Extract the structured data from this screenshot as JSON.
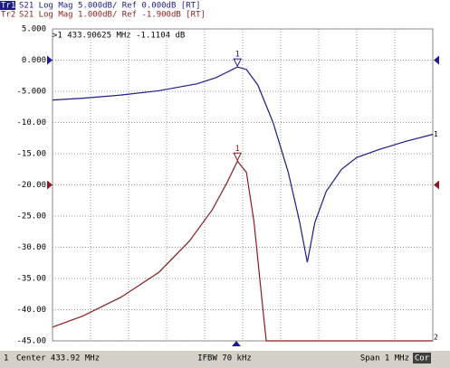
{
  "chart_data": {
    "type": "line",
    "xlim": [
      433.42,
      434.42
    ],
    "xticks": [
      433.42,
      433.52,
      433.62,
      433.72,
      433.82,
      433.92,
      434.02,
      434.12,
      434.22,
      434.32,
      434.42
    ],
    "ylim": [
      -45,
      5
    ],
    "yticks": [
      {
        "value": 5,
        "label": "5.000"
      },
      {
        "value": 0,
        "label": "0.000"
      },
      {
        "value": -5,
        "label": "-5.000"
      },
      {
        "value": -10,
        "label": "-10.00"
      },
      {
        "value": -15,
        "label": "-15.00"
      },
      {
        "value": -20,
        "label": "-20.00"
      },
      {
        "value": -25,
        "label": "-25.00"
      },
      {
        "value": -30,
        "label": "-30.00"
      },
      {
        "value": -35,
        "label": "-35.00"
      },
      {
        "value": -40,
        "label": "-40.00"
      },
      {
        "value": -45,
        "label": "-45.00"
      }
    ],
    "grid": true,
    "series": [
      {
        "name": "Tr1",
        "description": "S21 Log Mag 5.000dB/ Ref 0.000dB [RT]",
        "color": "#1c1c8a",
        "end_label": "1",
        "x": [
          433.42,
          433.5,
          433.6,
          433.7,
          433.8,
          433.85,
          433.88,
          433.90625,
          433.93,
          433.96,
          434.0,
          434.04,
          434.07,
          434.09,
          434.11,
          434.14,
          434.18,
          434.22,
          434.28,
          434.35,
          434.42
        ],
        "values": [
          -6.4,
          -6.1,
          -5.6,
          -4.9,
          -3.8,
          -2.8,
          -1.9,
          -1.1,
          -1.5,
          -4,
          -10,
          -18,
          -26,
          -32.4,
          -26,
          -21,
          -17.5,
          -15.6,
          -14.3,
          -13,
          -11.9
        ]
      },
      {
        "name": "Tr2",
        "description": "S21 Log Mag 1.000dB/ Ref -1.900dB [RT]",
        "color": "#8b1c1c",
        "end_label": "2",
        "x": [
          433.42,
          433.5,
          433.6,
          433.7,
          433.78,
          433.84,
          433.88,
          433.90625,
          433.93,
          433.95,
          433.97,
          433.982,
          434.2,
          434.42
        ],
        "values": [
          -42.8,
          -41,
          -38,
          -34,
          -29,
          -24,
          -19.5,
          -16.2,
          -18,
          -26,
          -38,
          -45,
          -45,
          -45
        ]
      }
    ],
    "ref_markers": [
      {
        "color": "#1c1c8a",
        "value": 0
      },
      {
        "color": "#8b1c1c",
        "value": -20
      }
    ],
    "markers": [
      {
        "label": "1",
        "x": 433.90625,
        "y": -1.1104,
        "color": "#1c1c8a"
      },
      {
        "label": "1",
        "x": 433.90625,
        "y": -16.2,
        "color": "#8b1c1c"
      }
    ],
    "marker_readout": ">1  433.90625 MHz -1.1104 dB",
    "footer": {
      "channel": "1",
      "center": "Center 433.92 MHz",
      "ifbw": "IFBW 70 kHz",
      "span": "Span 1 MHz",
      "cor": "Cor"
    }
  }
}
